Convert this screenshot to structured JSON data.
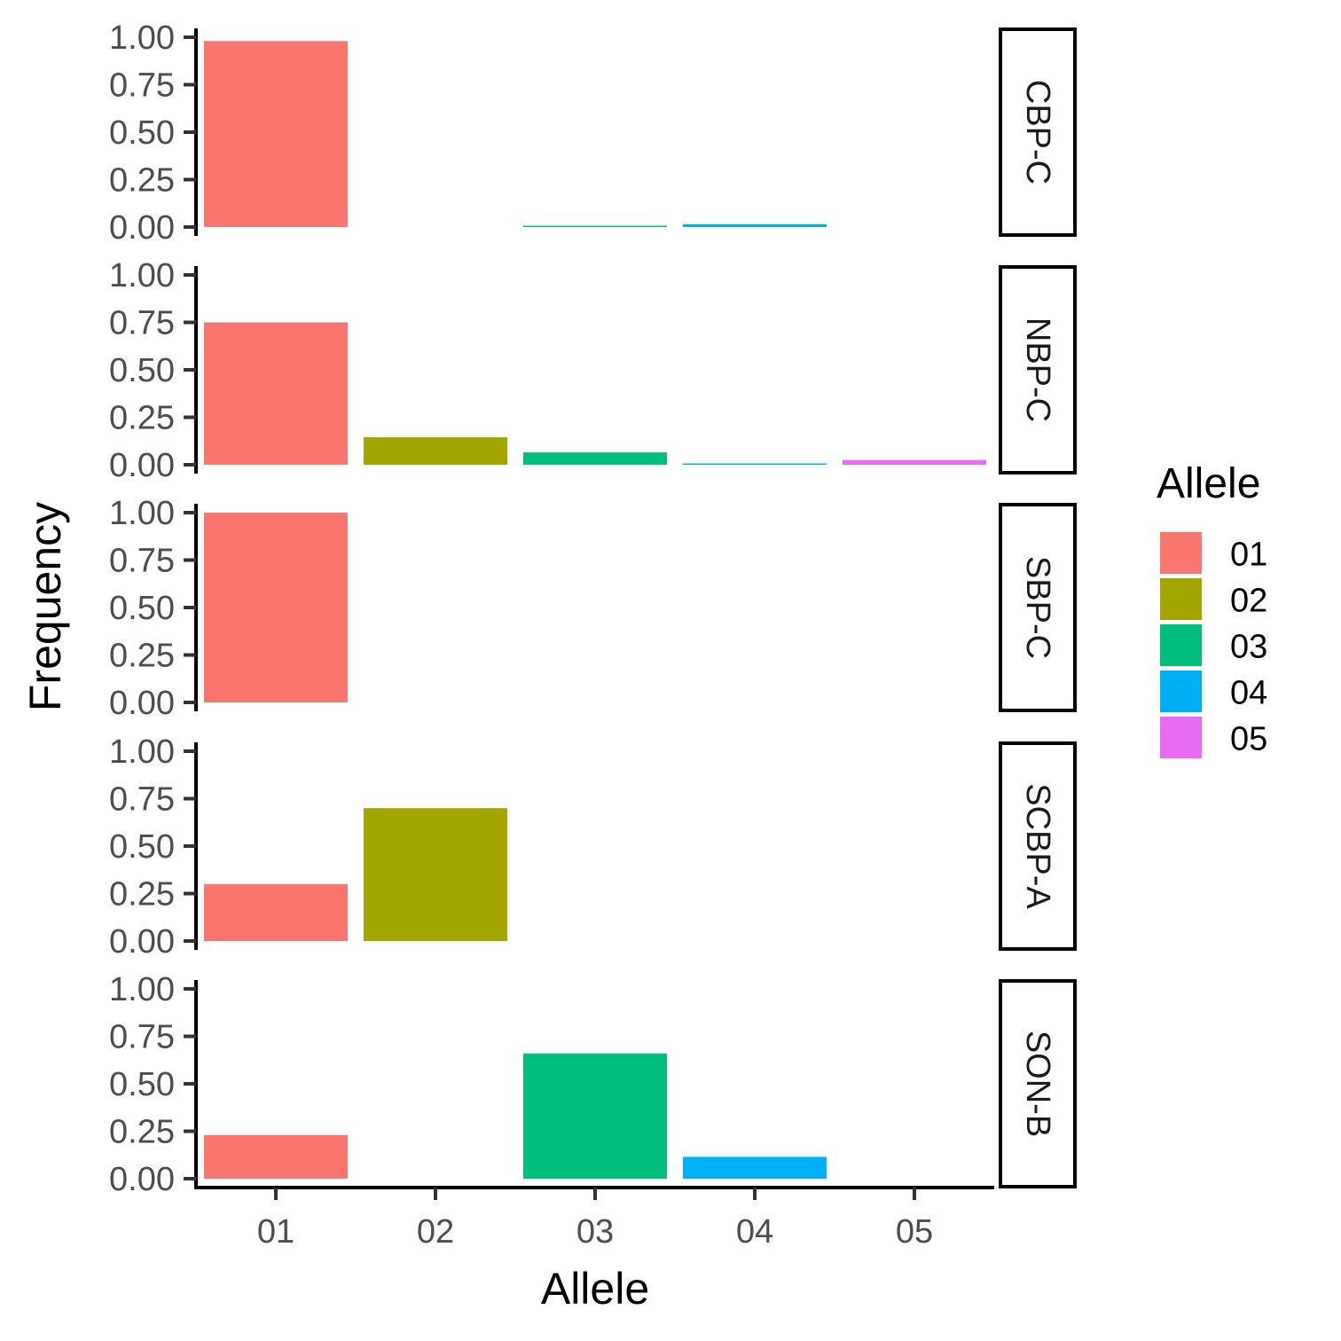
{
  "chart_data": {
    "type": "bar",
    "facet_direction": "rows",
    "facets": [
      "CBP-C",
      "NBP-C",
      "SBP-C",
      "SCBP-A",
      "SON-B"
    ],
    "categories": [
      "01",
      "02",
      "03",
      "04",
      "05"
    ],
    "panels": [
      {
        "facet": "CBP-C",
        "values": [
          0.98,
          0.0,
          0.005,
          0.015,
          0.0
        ]
      },
      {
        "facet": "NBP-C",
        "values": [
          0.75,
          0.145,
          0.065,
          0.005,
          0.025
        ]
      },
      {
        "facet": "SBP-C",
        "values": [
          1.0,
          0.0,
          0.0,
          0.0,
          0.0
        ]
      },
      {
        "facet": "SCBP-A",
        "values": [
          0.3,
          0.7,
          0.0,
          0.0,
          0.0
        ]
      },
      {
        "facet": "SON-B",
        "values": [
          0.23,
          0.0,
          0.66,
          0.115,
          0.0
        ]
      }
    ],
    "yticks": [
      "0.00",
      "0.25",
      "0.50",
      "0.75",
      "1.00"
    ],
    "ylim": [
      0,
      1
    ],
    "xlabel": "Allele",
    "ylabel": "Frequency",
    "legend": {
      "title": "Allele",
      "position": "right",
      "entries": [
        "01",
        "02",
        "03",
        "04",
        "05"
      ]
    },
    "colors": {
      "01": "#F8766D",
      "02": "#A3A500",
      "03": "#00BF7D",
      "04": "#00B0F6",
      "05": "#E76BF3"
    },
    "grid": false
  }
}
